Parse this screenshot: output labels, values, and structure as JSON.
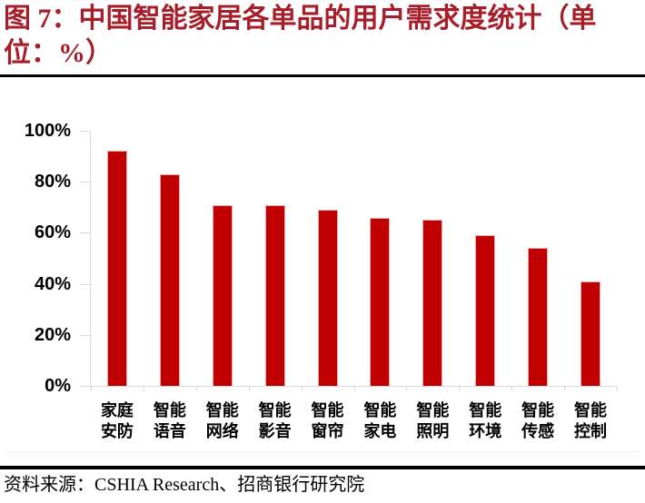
{
  "title": "图 7：中国智能家居各单品的用户需求度统计（单位：%）",
  "source_note": "资料来源：CSHIA Research、招商银行研究院",
  "colors": {
    "bar_fill": "#C00000",
    "bar_edge": "#E7ABAB",
    "title_text": "#A51E29",
    "axis_line": "#D9D9D9",
    "label_text": "#000000",
    "separator_rule": "#000000"
  },
  "chart_data": {
    "type": "bar",
    "title": "中国智能家居各单品的用户需求度统计",
    "unit": "%",
    "categories": [
      "家庭安防",
      "智能语音",
      "智能网络",
      "智能影音",
      "智能窗帘",
      "智能家电",
      "智能照明",
      "智能环境",
      "智能传感",
      "智能控制"
    ],
    "values": [
      92,
      83,
      71,
      71,
      69,
      66,
      65,
      59,
      54,
      41
    ],
    "ylim": [
      0,
      100
    ],
    "y_tick_labels": [
      "0%",
      "20%",
      "40%",
      "60%",
      "80%",
      "100%"
    ],
    "y_tick_values": [
      0,
      20,
      40,
      60,
      80,
      100
    ],
    "xlabel": "",
    "ylabel": "",
    "grid": false,
    "legend": false
  }
}
